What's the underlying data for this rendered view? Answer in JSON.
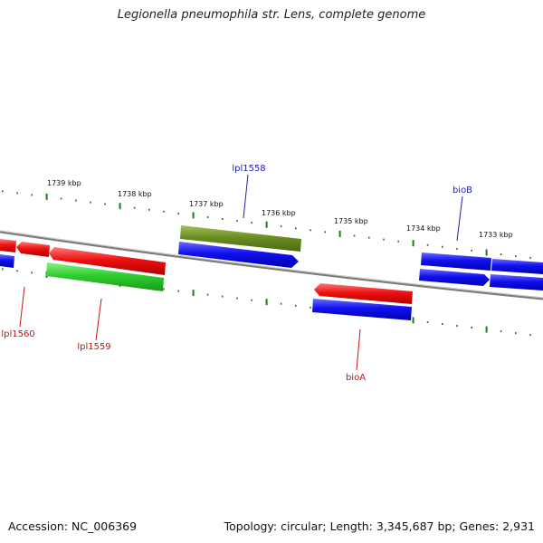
{
  "title": "Legionella pneumophila str. Lens, complete genome",
  "accession_label": "Accession: NC_006369",
  "summary_label": "Topology: circular; Length: 3,345,687 bp; Genes: 2,931",
  "ticks": [
    {
      "label": "1739 kbp"
    },
    {
      "label": "1738 kbp"
    },
    {
      "label": "1737 kbp"
    },
    {
      "label": "1736 kbp"
    },
    {
      "label": "1735 kbp"
    },
    {
      "label": "1734 kbp"
    },
    {
      "label": "1733 kbp"
    }
  ],
  "gene_labels": [
    {
      "text": "lpl1558",
      "color": "#1f1fa8"
    },
    {
      "text": "bioB",
      "color": "#1f1fa8"
    },
    {
      "text": "lpl1560",
      "color": "#cc1111"
    },
    {
      "text": "lpl1559",
      "color": "#cc1111"
    },
    {
      "text": "bioA",
      "color": "#cc1111"
    }
  ],
  "feature_colors": {
    "blue": "#1010ee",
    "red": "#ee1111",
    "green": "#2ecc2e",
    "olive": "#6b8e23",
    "tick_green": "#1e7a1e",
    "backbone": "#808080"
  }
}
